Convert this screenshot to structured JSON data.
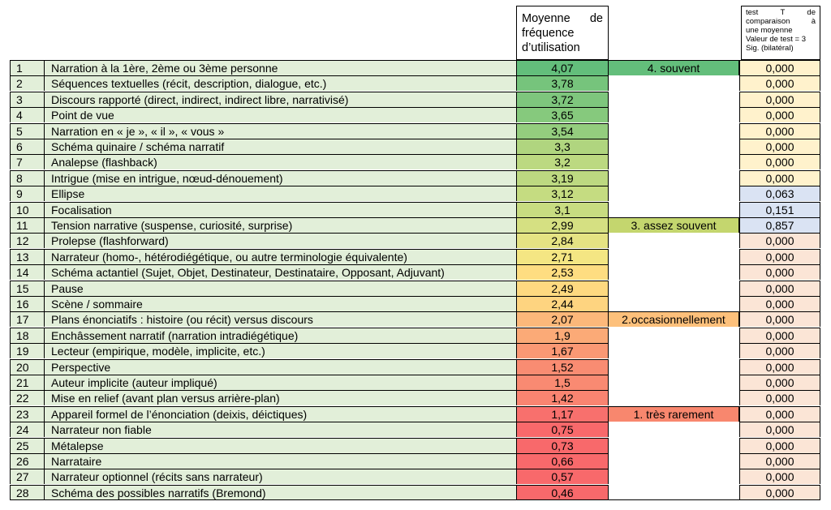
{
  "headers": {
    "mean_line1_a": "Moyenne",
    "mean_line1_b": "de",
    "mean_line2": "fréquence",
    "mean_line3": "d’utilisation",
    "test_line1_a": "test",
    "test_line1_b": "T",
    "test_line1_c": "de",
    "test_line2_a": "comparaison",
    "test_line2_b": "à",
    "test_line3": "une moyenne",
    "test_line4": "Valeur de test = 3",
    "test_line5": "Sig. (bilatéral)"
  },
  "colors": {
    "label_bg": "#e2efd9",
    "cat_souvent": "#63be7b",
    "cat_assez": "#c4d66e",
    "cat_occasion": "#fdc07b",
    "cat_rarement": "#f8876e",
    "sig_yellow": "#fff2cc",
    "sig_blue": "#dae3f3",
    "sig_peach": "#fbe5d6"
  },
  "rows": [
    {
      "num": "1",
      "label": "Narration à la 1ère, 2ème ou 3ème personne",
      "mean": "4,07",
      "mean_color": "#63be7b",
      "category": "4. souvent",
      "cat_color": "#63be7b",
      "sig": "0,000",
      "sig_color": "#fff2cc"
    },
    {
      "num": "2",
      "label": "Séquences textuelles (récit, description, dialogue, etc.)",
      "mean": "3,78",
      "mean_color": "#76c47c",
      "category": "",
      "cat_color": "",
      "sig": "0,000",
      "sig_color": "#fff2cc"
    },
    {
      "num": "3",
      "label": "Discours rapporté (direct, indirect, indirect libre, narrativisé)",
      "mean": "3,72",
      "mean_color": "#7ec67d",
      "category": "",
      "cat_color": "",
      "sig": "0,000",
      "sig_color": "#fff2cc"
    },
    {
      "num": "4",
      "label": "Point de vue",
      "mean": "3,65",
      "mean_color": "#86c97d",
      "category": "",
      "cat_color": "",
      "sig": "0,000",
      "sig_color": "#fff2cc"
    },
    {
      "num": "5",
      "label": "Narration en « je », « il », « vous »",
      "mean": "3,54",
      "mean_color": "#94cd7e",
      "category": "",
      "cat_color": "",
      "sig": "0,000",
      "sig_color": "#fff2cc"
    },
    {
      "num": "6",
      "label": "Schéma quinaire / schéma narratif",
      "mean": "3,3",
      "mean_color": "#b0d57f",
      "category": "",
      "cat_color": "",
      "sig": "0,000",
      "sig_color": "#fff2cc"
    },
    {
      "num": "7",
      "label": "Analepse (flashback)",
      "mean": "3,2",
      "mean_color": "#bcd981",
      "category": "",
      "cat_color": "",
      "sig": "0,000",
      "sig_color": "#fff2cc"
    },
    {
      "num": "8",
      "label": "Intrigue (mise en intrigue, nœud-dénouement)",
      "mean": "3,19",
      "mean_color": "#bdd981",
      "category": "",
      "cat_color": "",
      "sig": "0,000",
      "sig_color": "#fff2cc"
    },
    {
      "num": "9",
      "label": "Ellipse",
      "mean": "3,12",
      "mean_color": "#c5dc81",
      "category": "",
      "cat_color": "",
      "sig": "0,063",
      "sig_color": "#dae3f3"
    },
    {
      "num": "10",
      "label": "Focalisation",
      "mean": "3,1",
      "mean_color": "#c8dc81",
      "category": "",
      "cat_color": "",
      "sig": "0,151",
      "sig_color": "#dae3f3"
    },
    {
      "num": "11",
      "label": "Tension narrative (suspense, curiosité, surprise)",
      "mean": "2,99",
      "mean_color": "#d5e082",
      "category": "3. assez souvent",
      "cat_color": "#c4d66e",
      "sig": "0,857",
      "sig_color": "#dae3f3"
    },
    {
      "num": "12",
      "label": "Prolepse (flashforward)",
      "mean": "2,84",
      "mean_color": "#e5e383",
      "category": "",
      "cat_color": "",
      "sig": "0,000",
      "sig_color": "#fbe5d6"
    },
    {
      "num": "13",
      "label": "Narrateur (homo-, hétérodiégétique, ou autre terminologie équivalente)",
      "mean": "2,71",
      "mean_color": "#f4e683",
      "category": "",
      "cat_color": "",
      "sig": "0,000",
      "sig_color": "#fbe5d6"
    },
    {
      "num": "14",
      "label": "Schéma actantiel (Sujet, Objet, Destinateur, Destinataire, Opposant, Adjuvant)",
      "mean": "2,53",
      "mean_color": "#fedd81",
      "category": "",
      "cat_color": "",
      "sig": "0,000",
      "sig_color": "#fbe5d6"
    },
    {
      "num": "15",
      "label": "Pause",
      "mean": "2,49",
      "mean_color": "#fed980",
      "category": "",
      "cat_color": "",
      "sig": "0,000",
      "sig_color": "#fbe5d6"
    },
    {
      "num": "16",
      "label": "Scène / sommaire",
      "mean": "2,44",
      "mean_color": "#fed480",
      "category": "",
      "cat_color": "",
      "sig": "0,000",
      "sig_color": "#fbe5d6"
    },
    {
      "num": "17",
      "label": "Plans énonciatifs : histoire (ou récit) versus discours",
      "mean": "2,07",
      "mean_color": "#fcb87a",
      "category": "2.occasionnellement",
      "cat_color": "#fdc07b",
      "sig": "0,000",
      "sig_color": "#fbe5d6"
    },
    {
      "num": "18",
      "label": "Enchâssement narratif (narration intradiégétique)",
      "mean": "1,9",
      "mean_color": "#fbaa77",
      "category": "",
      "cat_color": "",
      "sig": "0,000",
      "sig_color": "#fbe5d6"
    },
    {
      "num": "19",
      "label": "Lecteur (empirique, modèle, implicite, etc.)",
      "mean": "1,67",
      "mean_color": "#fa9874",
      "category": "",
      "cat_color": "",
      "sig": "0,000",
      "sig_color": "#fbe5d6"
    },
    {
      "num": "20",
      "label": "Perspective",
      "mean": "1,52",
      "mean_color": "#f98c72",
      "category": "",
      "cat_color": "",
      "sig": "0,000",
      "sig_color": "#fbe5d6"
    },
    {
      "num": "21",
      "label": "Auteur implicite (auteur impliqué)",
      "mean": "1,5",
      "mean_color": "#f98a72",
      "category": "",
      "cat_color": "",
      "sig": "0,000",
      "sig_color": "#fbe5d6"
    },
    {
      "num": "22",
      "label": "Mise en relief (avant plan versus arrière-plan)",
      "mean": "1,42",
      "mean_color": "#f98471",
      "category": "",
      "cat_color": "",
      "sig": "0,000",
      "sig_color": "#fbe5d6"
    },
    {
      "num": "23",
      "label": "Appareil formel de l’énonciation (deixis, déictiques)",
      "mean": "1,17",
      "mean_color": "#f8706d",
      "category": "1. très rarement",
      "cat_color": "#f8876e",
      "sig": "0,000",
      "sig_color": "#fbe5d6"
    },
    {
      "num": "24",
      "label": "Narrateur non fiable",
      "mean": "0,75",
      "mean_color": "#f8696b",
      "category": "",
      "cat_color": "",
      "sig": "0,000",
      "sig_color": "#fbe5d6"
    },
    {
      "num": "25",
      "label": "Métalepse",
      "mean": "0,73",
      "mean_color": "#f8696b",
      "category": "",
      "cat_color": "",
      "sig": "0,000",
      "sig_color": "#fbe5d6"
    },
    {
      "num": "26",
      "label": "Narrataire",
      "mean": "0,66",
      "mean_color": "#f8696b",
      "category": "",
      "cat_color": "",
      "sig": "0,000",
      "sig_color": "#fbe5d6"
    },
    {
      "num": "27",
      "label": "Narrateur optionnel (récits sans narrateur)",
      "mean": "0,57",
      "mean_color": "#f8696b",
      "category": "",
      "cat_color": "",
      "sig": "0,000",
      "sig_color": "#fbe5d6"
    },
    {
      "num": "28",
      "label": "Schéma des possibles narratifs (Bremond)",
      "mean": "0,46",
      "mean_color": "#f8696b",
      "category": "",
      "cat_color": "",
      "sig": "0,000",
      "sig_color": "#fbe5d6"
    }
  ]
}
